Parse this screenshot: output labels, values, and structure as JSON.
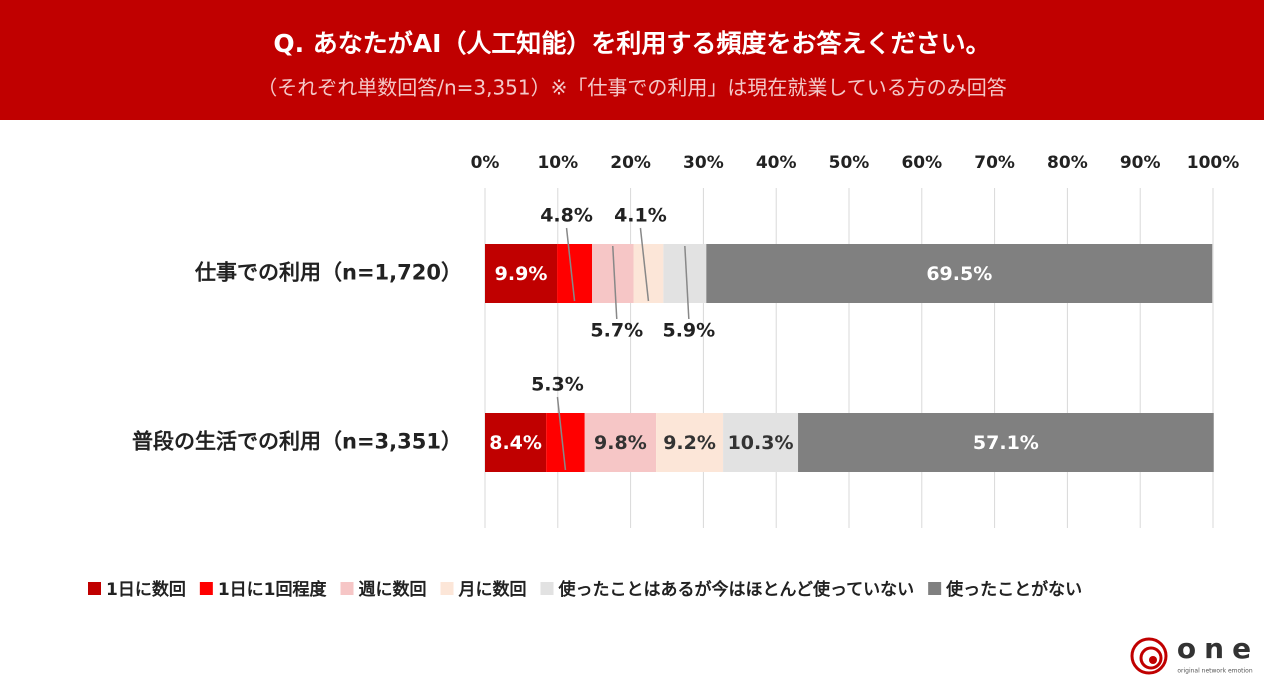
{
  "chart_data": {
    "type": "stacked-bar-horizontal",
    "title": "Q. あなたがAI（人工知能）を利用する頻度をお答えください。",
    "subtitle": "（それぞれ単数回答/n=3,351）※「仕事での利用」は現在就業している方のみ回答",
    "categories": [
      "仕事での利用（n=1,720）",
      "普段の生活での利用（n=3,351）"
    ],
    "series": [
      {
        "name": "1日に数回",
        "color": "#c00000",
        "values": [
          9.9,
          8.4
        ],
        "value_labels": [
          "9.9%",
          "8.4%"
        ]
      },
      {
        "name": "1日に1回程度",
        "color": "#ff0000",
        "values": [
          4.8,
          5.3
        ],
        "value_labels": [
          "4.8%",
          "5.3%"
        ]
      },
      {
        "name": "週に数回",
        "color": "#f6c6c6",
        "values": [
          5.7,
          9.8
        ],
        "value_labels": [
          "5.7%",
          "9.8%"
        ]
      },
      {
        "name": "月に数回",
        "color": "#fce6d8",
        "values": [
          4.1,
          9.2
        ],
        "value_labels": [
          "4.1%",
          "9.2%"
        ]
      },
      {
        "name": "使ったことはあるが今はほとんど使っていない",
        "color": "#e2e2e2",
        "values": [
          5.9,
          10.3
        ],
        "value_labels": [
          "5.9%",
          "10.3%"
        ]
      },
      {
        "name": "使ったことがない",
        "color": "#808080",
        "values": [
          69.5,
          57.1
        ],
        "value_labels": [
          "69.5%",
          "57.1%"
        ]
      }
    ],
    "xlim": [
      0,
      100
    ],
    "xticks": [
      {
        "value": 0,
        "label": "0%"
      },
      {
        "value": 10,
        "label": "10%"
      },
      {
        "value": 20,
        "label": "20%"
      },
      {
        "value": 30,
        "label": "30%"
      },
      {
        "value": 40,
        "label": "40%"
      },
      {
        "value": 50,
        "label": "50%"
      },
      {
        "value": 60,
        "label": "60%"
      },
      {
        "value": 70,
        "label": "70%"
      },
      {
        "value": 80,
        "label": "80%"
      },
      {
        "value": 90,
        "label": "90%"
      },
      {
        "value": 100,
        "label": "100%"
      }
    ],
    "grid": true
  },
  "logo": {
    "name": "one",
    "tagline": "original network emotion"
  }
}
